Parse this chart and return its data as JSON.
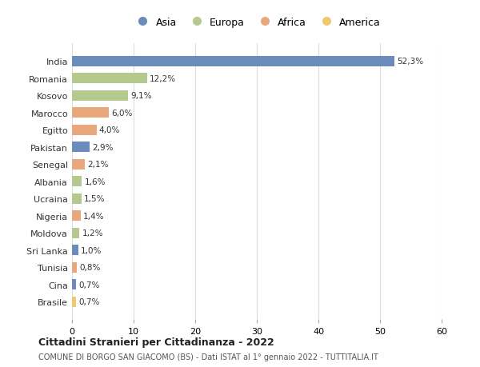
{
  "countries": [
    "India",
    "Romania",
    "Kosovo",
    "Marocco",
    "Egitto",
    "Pakistan",
    "Senegal",
    "Albania",
    "Ucraina",
    "Nigeria",
    "Moldova",
    "Sri Lanka",
    "Tunisia",
    "Cina",
    "Brasile"
  ],
  "values": [
    52.3,
    12.2,
    9.1,
    6.0,
    4.0,
    2.9,
    2.1,
    1.6,
    1.5,
    1.4,
    1.2,
    1.0,
    0.8,
    0.7,
    0.7
  ],
  "labels": [
    "52,3%",
    "12,2%",
    "9,1%",
    "6,0%",
    "4,0%",
    "2,9%",
    "2,1%",
    "1,6%",
    "1,5%",
    "1,4%",
    "1,2%",
    "1,0%",
    "0,8%",
    "0,7%",
    "0,7%"
  ],
  "continents": [
    "Asia",
    "Europa",
    "Europa",
    "Africa",
    "Africa",
    "Asia",
    "Africa",
    "Europa",
    "Europa",
    "Africa",
    "Europa",
    "Asia",
    "Africa",
    "Asia",
    "America"
  ],
  "colors": {
    "Asia": "#6b8cba",
    "Europa": "#b5c98e",
    "Africa": "#e8a87c",
    "America": "#f0c96e"
  },
  "legend_order": [
    "Asia",
    "Europa",
    "Africa",
    "America"
  ],
  "title": "Cittadini Stranieri per Cittadinanza - 2022",
  "subtitle": "COMUNE DI BORGO SAN GIACOMO (BS) - Dati ISTAT al 1° gennaio 2022 - TUTTITALIA.IT",
  "xlim": [
    0,
    60
  ],
  "xticks": [
    0,
    10,
    20,
    30,
    40,
    50,
    60
  ],
  "bg_color": "#ffffff",
  "grid_color": "#dddddd",
  "bar_height": 0.6
}
